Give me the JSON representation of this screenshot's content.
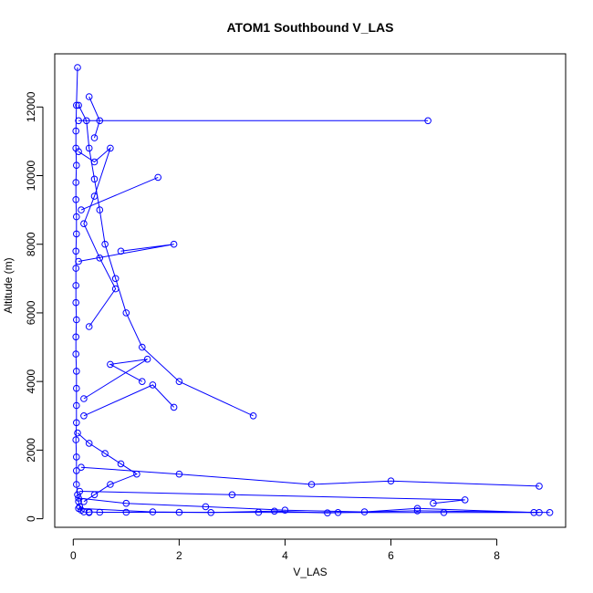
{
  "chart_data": {
    "type": "line",
    "title": "ATOM1 Southbound V_LAS",
    "xlabel": "V_LAS",
    "ylabel": "Altitude (m)",
    "xlim": [
      -0.35,
      9.3
    ],
    "ylim": [
      -250,
      13550
    ],
    "xticks": [
      0,
      2,
      4,
      6,
      8
    ],
    "yticks": [
      0,
      2000,
      4000,
      6000,
      8000,
      10000,
      12000
    ],
    "grid": false,
    "color": "#0000ff",
    "series": [
      {
        "x": [
          0.08,
          0.06,
          0.05,
          0.05,
          0.06,
          0.05,
          0.05,
          0.06,
          0.06,
          0.05,
          0.05,
          0.05,
          0.05,
          0.06,
          0.05,
          0.05,
          0.06,
          0.06,
          0.06,
          0.06,
          0.05,
          0.06,
          0.06,
          0.06,
          0.08,
          0.1,
          0.12,
          0.15,
          0.2,
          0.3
        ],
        "y": [
          13150,
          12050,
          11300,
          10800,
          10300,
          9800,
          9300,
          8800,
          8300,
          7800,
          7300,
          6800,
          6300,
          5800,
          5300,
          4800,
          4300,
          3800,
          3300,
          2800,
          2300,
          1800,
          1400,
          1000,
          700,
          500,
          350,
          250,
          200,
          180
        ]
      },
      {
        "x": [
          0.3,
          0.5,
          1.0,
          2.0,
          3.5,
          5.0,
          7.0,
          8.8
        ],
        "y": [
          200,
          190,
          190,
          185,
          185,
          180,
          180,
          180
        ]
      },
      {
        "x": [
          0.1,
          0.25,
          0.3,
          0.4,
          0.5,
          0.6,
          0.8,
          1.0,
          1.3,
          2.0,
          3.4
        ],
        "y": [
          12050,
          11600,
          10800,
          9900,
          9000,
          8000,
          7000,
          6000,
          5000,
          4000,
          3000
        ]
      },
      {
        "x": [
          0.1,
          6.7
        ],
        "y": [
          11600,
          11600
        ]
      },
      {
        "x": [
          0.15,
          1.6
        ],
        "y": [
          9000,
          9950
        ]
      },
      {
        "x": [
          0.1,
          1.9,
          0.9
        ],
        "y": [
          7500,
          8000,
          7800
        ]
      },
      {
        "x": [
          0.2,
          1.4,
          0.7,
          1.3
        ],
        "y": [
          3500,
          4650,
          4500,
          4000
        ]
      },
      {
        "x": [
          0.2,
          1.5,
          1.9
        ],
        "y": [
          3000,
          3900,
          3250
        ]
      },
      {
        "x": [
          0.15,
          2.0,
          4.5,
          6.0,
          8.8
        ],
        "y": [
          1500,
          1300,
          1000,
          1100,
          950
        ]
      },
      {
        "x": [
          0.12,
          3.0,
          7.4,
          6.8
        ],
        "y": [
          800,
          700,
          550,
          450
        ]
      },
      {
        "x": [
          0.1,
          1.0,
          2.5,
          4.0,
          5.5,
          6.5,
          8.7
        ],
        "y": [
          600,
          450,
          350,
          250,
          200,
          300,
          180
        ]
      },
      {
        "x": [
          0.1,
          1.5,
          2.6,
          3.8,
          4.8,
          6.5,
          9.0
        ],
        "y": [
          300,
          200,
          180,
          220,
          170,
          230,
          180
        ]
      },
      {
        "x": [
          0.08,
          0.3,
          0.6,
          0.9,
          1.2,
          0.7,
          0.4,
          0.2
        ],
        "y": [
          2500,
          2200,
          1900,
          1600,
          1300,
          1000,
          700,
          500
        ]
      },
      {
        "x": [
          0.1,
          0.4,
          0.7,
          0.4,
          0.2,
          0.5,
          0.8,
          0.3
        ],
        "y": [
          10700,
          10400,
          10800,
          9400,
          8600,
          7600,
          6700,
          5600
        ]
      },
      {
        "x": [
          0.3,
          0.5,
          0.4
        ],
        "y": [
          12300,
          11600,
          11100
        ]
      }
    ]
  }
}
